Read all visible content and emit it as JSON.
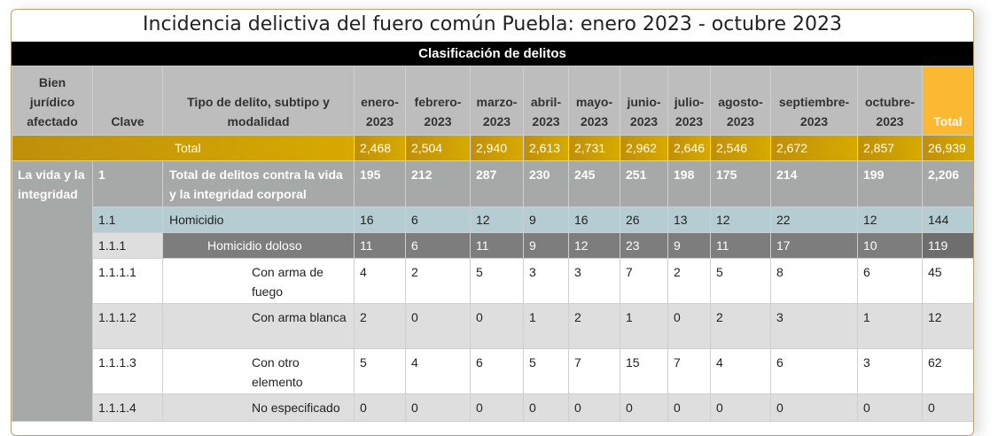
{
  "title": "Incidencia delictiva del fuero común Puebla: enero 2023 - octubre 2023",
  "band": "Clasificación de delitos",
  "headers": {
    "bien": "Bien jurídico afectado",
    "clave": "Clave",
    "tipo": "Tipo de delito, subtipo y modalidad",
    "months": [
      "enero-2023",
      "febrero-2023",
      "marzo-2023",
      "abril-2023",
      "mayo-2023",
      "junio-2023",
      "julio-2023",
      "agosto-2023",
      "septiembre-2023",
      "octubre-2023"
    ],
    "total": "Total"
  },
  "total_row": {
    "label": "Total",
    "values": [
      "2,468",
      "2,504",
      "2,940",
      "2,613",
      "2,731",
      "2,962",
      "2,646",
      "2,546",
      "2,672",
      "2,857"
    ],
    "total": "26,939"
  },
  "bien_juridico": "La vida y la integridad",
  "rows": [
    {
      "style": "r1",
      "clave": "1",
      "tipo": "Total de delitos contra la vida y la integridad corporal",
      "indent": 0,
      "values": [
        "195",
        "212",
        "287",
        "230",
        "245",
        "251",
        "198",
        "175",
        "214",
        "199"
      ],
      "total": "2,206"
    },
    {
      "style": "r2",
      "clave": "1.1",
      "tipo": "Homicidio",
      "indent": 0,
      "values": [
        "16",
        "6",
        "12",
        "9",
        "16",
        "26",
        "13",
        "12",
        "22",
        "12"
      ],
      "total": "144"
    },
    {
      "style": "r3",
      "clave": "1.1.1",
      "tipo": "Homicidio doloso",
      "indent": 1,
      "values": [
        "11",
        "6",
        "11",
        "9",
        "12",
        "23",
        "9",
        "11",
        "17",
        "10"
      ],
      "total": "119"
    },
    {
      "style": "w",
      "clave": "1.1.1.1",
      "tipo": "Con arma de fuego",
      "indent": 2,
      "values": [
        "4",
        "2",
        "5",
        "3",
        "3",
        "7",
        "2",
        "5",
        "8",
        "6"
      ],
      "total": "45"
    },
    {
      "style": "g",
      "clave": "1.1.1.2",
      "tipo": "Con arma blanca",
      "indent": 2,
      "values": [
        "2",
        "0",
        "0",
        "1",
        "2",
        "1",
        "0",
        "2",
        "3",
        "1"
      ],
      "total": "12"
    },
    {
      "style": "w",
      "clave": "1.1.1.3",
      "tipo": "Con otro elemento",
      "indent": 2,
      "values": [
        "5",
        "4",
        "6",
        "5",
        "7",
        "15",
        "7",
        "4",
        "6",
        "3"
      ],
      "total": "62"
    },
    {
      "style": "g last",
      "clave": "1.1.1.4",
      "tipo": "No especificado",
      "indent": 2,
      "values": [
        "0",
        "0",
        "0",
        "0",
        "0",
        "0",
        "0",
        "0",
        "0",
        "0"
      ],
      "total": "0"
    }
  ],
  "colors": {
    "header": "#bdbdbd",
    "total_header": "#fbb832",
    "total_row": "#d8aa00",
    "group": "#a5aaa9",
    "homicidio": "#b5cdd2",
    "doloso": "#7d7d7d"
  }
}
